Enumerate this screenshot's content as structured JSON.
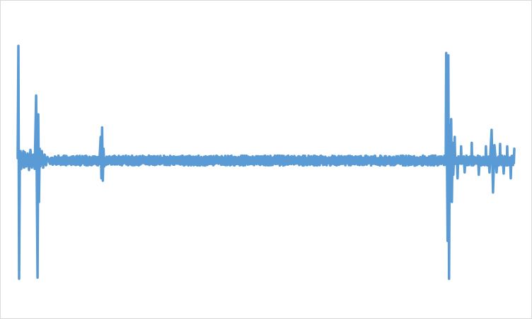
{
  "chart_data": {
    "type": "line",
    "title": "",
    "xlabel": "",
    "ylabel": "",
    "grid": false,
    "legend": "none",
    "xlim": [
      0,
      700
    ],
    "ylim": [
      -1.0,
      1.0
    ],
    "color": "#5b9bd5",
    "series": [
      {
        "baseline_noise": 0.03,
        "x": [
          0,
          1,
          2,
          3,
          4,
          5,
          6,
          7,
          8,
          9,
          10,
          12,
          14,
          16,
          18,
          20,
          22,
          24,
          26,
          28,
          29,
          30,
          31,
          32,
          34,
          36,
          38,
          40,
          42,
          45,
          50,
          60,
          70,
          80,
          90,
          100,
          110,
          115,
          117,
          118,
          119,
          120,
          121,
          122,
          124,
          130,
          150,
          200,
          250,
          300,
          350,
          400,
          450,
          500,
          550,
          600,
          604,
          606,
          607,
          608,
          609,
          610,
          611,
          612,
          613,
          614,
          616,
          620,
          625,
          630,
          640,
          650,
          660,
          665,
          668,
          670,
          672,
          675,
          680,
          685,
          690,
          695,
          700
        ],
        "y": [
          0.02,
          0.97,
          -1.0,
          0.0,
          0.08,
          -0.07,
          0.06,
          -0.05,
          0.08,
          -0.06,
          0.07,
          -0.05,
          0.06,
          -0.08,
          0.09,
          -0.06,
          0.05,
          -0.07,
          0.55,
          -0.99,
          0.39,
          -0.35,
          0.1,
          -0.05,
          0.08,
          -0.06,
          0.05,
          -0.04,
          0.03,
          -0.02,
          0.02,
          -0.02,
          0.02,
          -0.03,
          0.02,
          -0.02,
          0.03,
          -0.03,
          0.2,
          -0.15,
          0.28,
          -0.17,
          0.1,
          -0.05,
          0.02,
          -0.02,
          0.02,
          -0.02,
          0.02,
          -0.03,
          0.02,
          -0.02,
          0.02,
          -0.02,
          0.02,
          -0.02,
          0.91,
          -0.68,
          0.89,
          -1.0,
          0.3,
          -0.28,
          0.35,
          -0.35,
          0.15,
          -0.12,
          0.2,
          -0.15,
          0.12,
          -0.1,
          0.15,
          -0.12,
          0.12,
          -0.1,
          0.26,
          -0.27,
          0.13,
          -0.1,
          0.14,
          -0.11,
          0.12,
          -0.15,
          0.1
        ]
      }
    ]
  }
}
